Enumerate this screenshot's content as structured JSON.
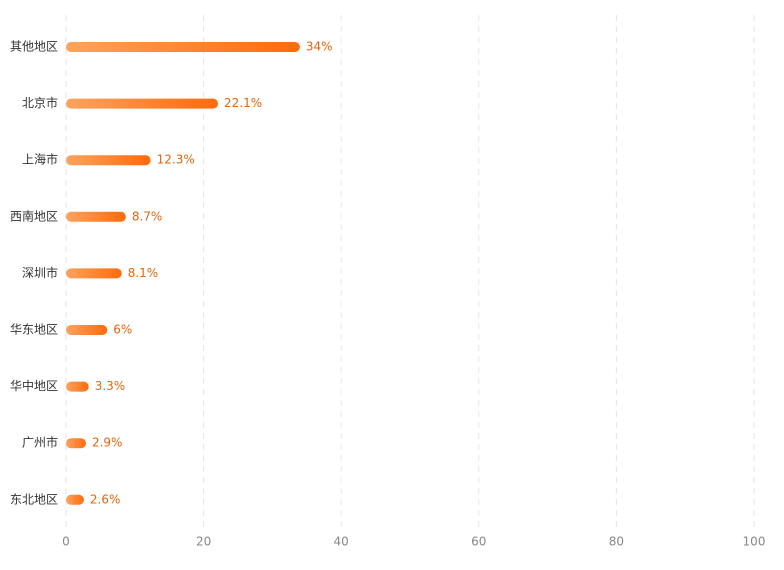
{
  "chart_data": {
    "type": "bar",
    "orientation": "horizontal",
    "categories": [
      "其他地区",
      "北京市",
      "上海市",
      "西南地区",
      "深圳市",
      "华东地区",
      "华中地区",
      "广州市",
      "东北地区"
    ],
    "values": [
      34,
      22.1,
      12.3,
      8.7,
      8.1,
      6,
      3.3,
      2.9,
      2.6
    ],
    "value_labels": [
      "34%",
      "22.1%",
      "12.3%",
      "8.7%",
      "8.1%",
      "6%",
      "3.3%",
      "2.9%",
      "2.6%"
    ],
    "gradient": [
      "#fda35e",
      "#ff6a0c"
    ],
    "xlim": [
      0,
      100
    ],
    "xticks": [
      0,
      20,
      40,
      60,
      80,
      100
    ],
    "grid": true
  }
}
